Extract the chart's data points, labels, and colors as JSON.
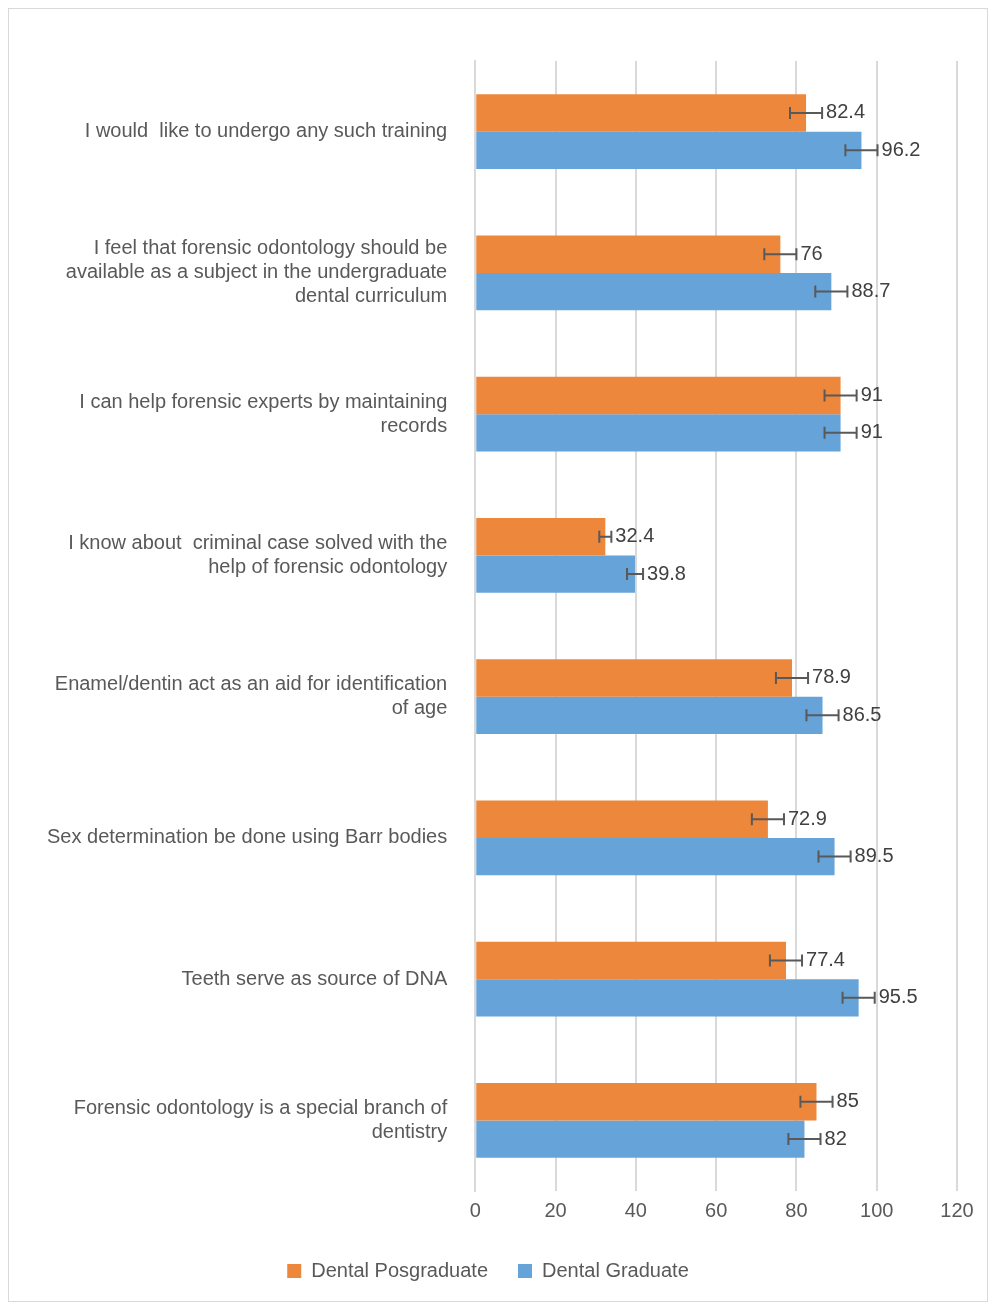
{
  "chart_data": {
    "type": "bar",
    "orientation": "horizontal",
    "categories": [
      "I would  like to undergo any such training",
      "I feel that forensic odontology should be available as a subject in the undergraduate dental curriculum",
      "I can help forensic experts by maintaining records",
      "I know about  criminal case solved with the help of forensic odontology",
      "Enamel/dentin act as an aid for identification of age",
      "Sex determination be done using Barr bodies",
      "Teeth serve as source of DNA",
      "Forensic odontology is a special branch of dentistry"
    ],
    "series": [
      {
        "name": "Dental Posgraduate",
        "color": "#ed873b",
        "values": [
          82.4,
          76,
          91,
          32.4,
          78.9,
          72.9,
          77.4,
          85
        ],
        "errors": [
          4,
          4,
          4,
          1.5,
          4,
          4,
          4,
          4
        ]
      },
      {
        "name": "Dental Graduate",
        "color": "#65a3d8",
        "values": [
          96.2,
          88.7,
          91,
          39.8,
          86.5,
          89.5,
          95.5,
          82
        ],
        "errors": [
          4,
          4,
          4,
          2,
          4,
          4,
          4,
          4
        ]
      }
    ],
    "xlim": [
      0,
      120
    ],
    "xticks": [
      0,
      20,
      40,
      60,
      80,
      100,
      120
    ],
    "grid": "x",
    "legend": "bottom",
    "data_labels": true
  }
}
